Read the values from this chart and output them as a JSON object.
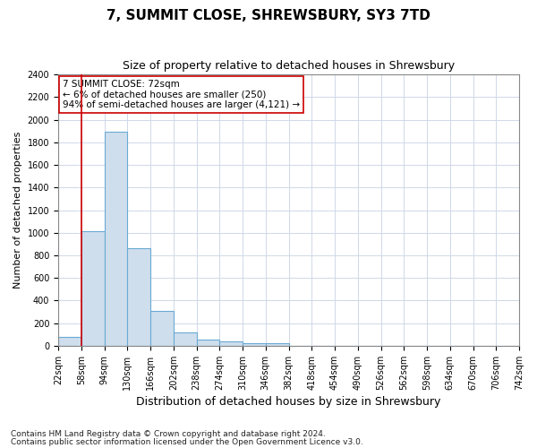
{
  "title1": "7, SUMMIT CLOSE, SHREWSBURY, SY3 7TD",
  "title2": "Size of property relative to detached houses in Shrewsbury",
  "xlabel": "Distribution of detached houses by size in Shrewsbury",
  "ylabel": "Number of detached properties",
  "bar_values": [
    80,
    1010,
    1890,
    860,
    310,
    115,
    55,
    40,
    25,
    20,
    0,
    0,
    0,
    0,
    0,
    0,
    0,
    0,
    0,
    0
  ],
  "bin_labels": [
    "22sqm",
    "58sqm",
    "94sqm",
    "130sqm",
    "166sqm",
    "202sqm",
    "238sqm",
    "274sqm",
    "310sqm",
    "346sqm",
    "382sqm",
    "418sqm",
    "454sqm",
    "490sqm",
    "526sqm",
    "562sqm",
    "598sqm",
    "634sqm",
    "670sqm",
    "706sqm",
    "742sqm"
  ],
  "bar_color": "#cfdeed",
  "bar_edge_color": "#6aaad4",
  "grid_color": "#d0d8e8",
  "vline_color": "#cc0000",
  "annotation_text": "7 SUMMIT CLOSE: 72sqm\n← 6% of detached houses are smaller (250)\n94% of semi-detached houses are larger (4,121) →",
  "annotation_box_color": "#ffffff",
  "annotation_box_edge": "#cc0000",
  "ylim": [
    0,
    2400
  ],
  "yticks": [
    0,
    200,
    400,
    600,
    800,
    1000,
    1200,
    1400,
    1600,
    1800,
    2000,
    2200,
    2400
  ],
  "footnote1": "Contains HM Land Registry data © Crown copyright and database right 2024.",
  "footnote2": "Contains public sector information licensed under the Open Government Licence v3.0.",
  "title1_fontsize": 11,
  "title2_fontsize": 9,
  "xlabel_fontsize": 9,
  "ylabel_fontsize": 8,
  "tick_fontsize": 7,
  "annotation_fontsize": 7.5
}
